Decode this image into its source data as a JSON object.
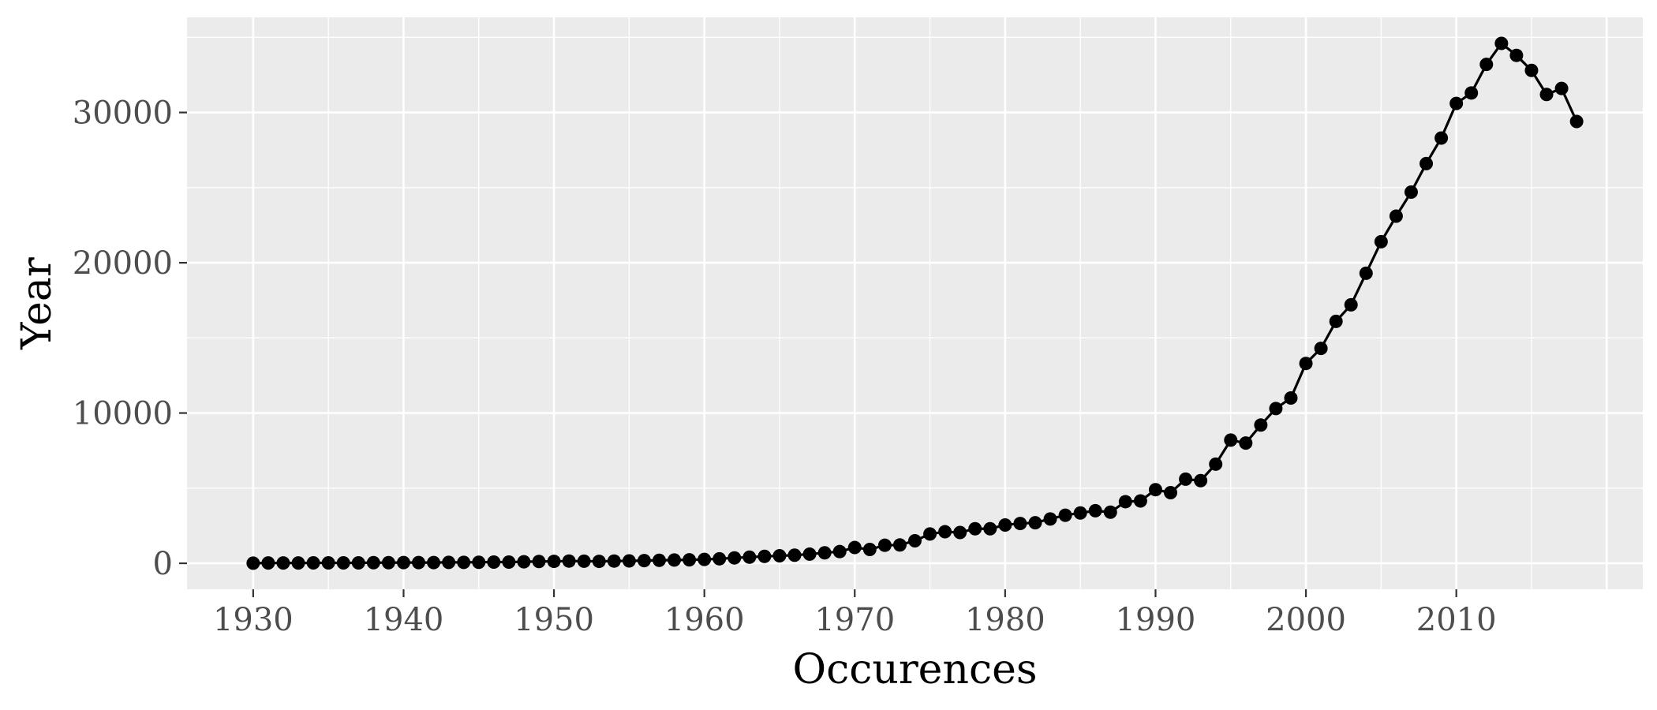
{
  "chart_data": {
    "type": "line",
    "title": "",
    "xlabel": "Occurences",
    "ylabel": "Year",
    "xlim": [
      1925.6,
      2022.4
    ],
    "ylim": [
      -1730,
      36330
    ],
    "x_ticks": [
      1930,
      1940,
      1950,
      1960,
      1970,
      1980,
      1990,
      2000,
      2010
    ],
    "x_tick_labels": [
      "1930",
      "1940",
      "1950",
      "1960",
      "1970",
      "1980",
      "1990",
      "2000",
      "2010"
    ],
    "y_ticks": [
      0,
      10000,
      20000,
      30000
    ],
    "y_tick_labels": [
      "0",
      "10000",
      "20000",
      "30000"
    ],
    "grid": true,
    "markers": true,
    "colors": {
      "panel": "#ebebeb",
      "grid": "#ffffff",
      "line": "#000000"
    },
    "x": [
      1930,
      1931,
      1932,
      1933,
      1934,
      1935,
      1936,
      1937,
      1938,
      1939,
      1940,
      1941,
      1942,
      1943,
      1944,
      1945,
      1946,
      1947,
      1948,
      1949,
      1950,
      1951,
      1952,
      1953,
      1954,
      1955,
      1956,
      1957,
      1958,
      1959,
      1960,
      1961,
      1962,
      1963,
      1964,
      1965,
      1966,
      1967,
      1968,
      1969,
      1970,
      1971,
      1972,
      1973,
      1974,
      1975,
      1976,
      1977,
      1978,
      1979,
      1980,
      1981,
      1982,
      1983,
      1984,
      1985,
      1986,
      1987,
      1988,
      1989,
      1990,
      1991,
      1992,
      1993,
      1994,
      1995,
      1996,
      1997,
      1998,
      1999,
      2000,
      2001,
      2002,
      2003,
      2004,
      2005,
      2006,
      2007,
      2008,
      2009,
      2010,
      2011,
      2012,
      2013,
      2014,
      2015,
      2016,
      2017,
      2018
    ],
    "y": [
      10,
      20,
      20,
      20,
      30,
      30,
      30,
      30,
      40,
      40,
      50,
      50,
      50,
      60,
      60,
      70,
      80,
      80,
      100,
      120,
      130,
      150,
      140,
      130,
      150,
      160,
      180,
      200,
      220,
      230,
      260,
      300,
      360,
      410,
      460,
      500,
      540,
      610,
      700,
      780,
      1050,
      920,
      1200,
      1220,
      1500,
      1950,
      2100,
      2050,
      2300,
      2300,
      2550,
      2650,
      2700,
      2950,
      3200,
      3350,
      3500,
      3400,
      4100,
      4150,
      4900,
      4700,
      5600,
      5500,
      6600,
      8200,
      8000,
      9200,
      10300,
      11000,
      13300,
      14300,
      16100,
      17200,
      19300,
      21400,
      23100,
      24700,
      26600,
      28300,
      30600,
      31300,
      33200,
      34600,
      33800,
      32800,
      31200,
      31600,
      29400
    ]
  }
}
